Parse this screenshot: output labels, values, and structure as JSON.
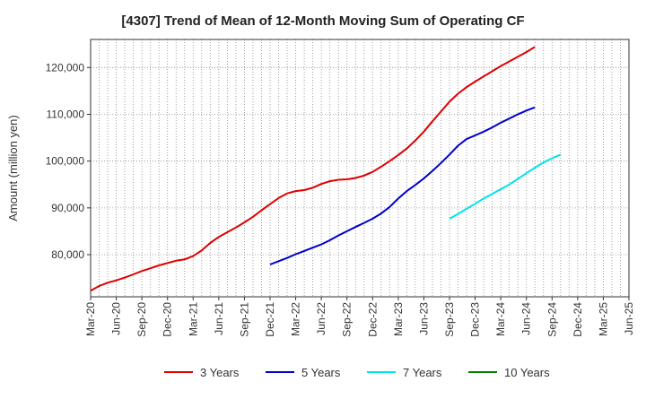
{
  "chart_data": {
    "type": "line",
    "title": "[4307]  Trend of Mean of 12-Month Moving Sum of Operating CF",
    "xlabel": "",
    "ylabel": "Amount (million yen)",
    "ylim": [
      71000,
      126000
    ],
    "yticks": [
      80000,
      90000,
      100000,
      110000,
      120000
    ],
    "ytick_labels": [
      "80,000",
      "90,000",
      "100,000",
      "110,000",
      "120,000"
    ],
    "x_months_range": [
      0,
      63
    ],
    "xticks_months": [
      0,
      3,
      6,
      9,
      12,
      15,
      18,
      21,
      24,
      27,
      30,
      33,
      36,
      39,
      42,
      45,
      48,
      51,
      54,
      57,
      60,
      63
    ],
    "xtick_labels": [
      "Mar-20",
      "Jun-20",
      "Sep-20",
      "Dec-20",
      "Mar-21",
      "Jun-21",
      "Sep-21",
      "Dec-21",
      "Mar-22",
      "Jun-22",
      "Sep-22",
      "Dec-22",
      "Mar-23",
      "Jun-23",
      "Sep-23",
      "Dec-23",
      "Mar-24",
      "Jun-24",
      "Sep-24",
      "Dec-24",
      "Mar-25",
      "Jun-25"
    ],
    "grid": true,
    "series": [
      {
        "name": "3 Years",
        "color": "#dd0000",
        "points": [
          [
            0,
            72300
          ],
          [
            1,
            73300
          ],
          [
            2,
            74000
          ],
          [
            3,
            74500
          ],
          [
            4,
            75100
          ],
          [
            5,
            75800
          ],
          [
            6,
            76500
          ],
          [
            7,
            77100
          ],
          [
            8,
            77700
          ],
          [
            9,
            78200
          ],
          [
            10,
            78700
          ],
          [
            11,
            79000
          ],
          [
            12,
            79700
          ],
          [
            13,
            80900
          ],
          [
            14,
            82500
          ],
          [
            15,
            83800
          ],
          [
            16,
            84800
          ],
          [
            17,
            85800
          ],
          [
            18,
            86900
          ],
          [
            19,
            88100
          ],
          [
            20,
            89500
          ],
          [
            21,
            90800
          ],
          [
            22,
            92100
          ],
          [
            23,
            93100
          ],
          [
            24,
            93600
          ],
          [
            25,
            93800
          ],
          [
            26,
            94300
          ],
          [
            27,
            95100
          ],
          [
            28,
            95700
          ],
          [
            29,
            96000
          ],
          [
            30,
            96100
          ],
          [
            31,
            96400
          ],
          [
            32,
            96900
          ],
          [
            33,
            97700
          ],
          [
            34,
            98800
          ],
          [
            35,
            100000
          ],
          [
            36,
            101300
          ],
          [
            37,
            102700
          ],
          [
            38,
            104400
          ],
          [
            39,
            106300
          ],
          [
            40,
            108500
          ],
          [
            41,
            110600
          ],
          [
            42,
            112700
          ],
          [
            43,
            114400
          ],
          [
            44,
            115800
          ],
          [
            45,
            117000
          ],
          [
            46,
            118100
          ],
          [
            47,
            119200
          ],
          [
            48,
            120300
          ],
          [
            49,
            121300
          ],
          [
            50,
            122300
          ],
          [
            51,
            123300
          ],
          [
            52,
            124400
          ]
        ]
      },
      {
        "name": "5 Years",
        "color": "#0000cc",
        "points": [
          [
            21,
            77900
          ],
          [
            22,
            78600
          ],
          [
            23,
            79300
          ],
          [
            24,
            80100
          ],
          [
            25,
            80800
          ],
          [
            26,
            81500
          ],
          [
            27,
            82200
          ],
          [
            28,
            83100
          ],
          [
            29,
            84100
          ],
          [
            30,
            85000
          ],
          [
            31,
            85900
          ],
          [
            32,
            86800
          ],
          [
            33,
            87700
          ],
          [
            34,
            88800
          ],
          [
            35,
            90200
          ],
          [
            36,
            92000
          ],
          [
            37,
            93600
          ],
          [
            38,
            94900
          ],
          [
            39,
            96300
          ],
          [
            40,
            97900
          ],
          [
            41,
            99600
          ],
          [
            42,
            101400
          ],
          [
            43,
            103300
          ],
          [
            44,
            104700
          ],
          [
            45,
            105500
          ],
          [
            46,
            106300
          ],
          [
            47,
            107200
          ],
          [
            48,
            108200
          ],
          [
            49,
            109100
          ],
          [
            50,
            110000
          ],
          [
            51,
            110800
          ],
          [
            52,
            111500
          ]
        ]
      },
      {
        "name": "7 Years",
        "color": "#00e5e5",
        "points": [
          [
            42,
            87700
          ],
          [
            43,
            88700
          ],
          [
            44,
            89800
          ],
          [
            45,
            90900
          ],
          [
            46,
            92000
          ],
          [
            47,
            93000
          ],
          [
            48,
            94000
          ],
          [
            49,
            95000
          ],
          [
            50,
            96200
          ],
          [
            51,
            97400
          ],
          [
            52,
            98600
          ],
          [
            53,
            99700
          ],
          [
            54,
            100600
          ],
          [
            55,
            101400
          ]
        ]
      },
      {
        "name": "10 Years",
        "color": "#008000",
        "points": []
      }
    ]
  }
}
